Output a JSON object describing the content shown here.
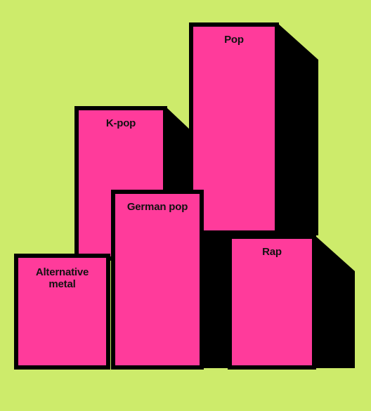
{
  "genres": [
    {
      "key": "pop",
      "label": "Pop"
    },
    {
      "key": "kpop",
      "label": "K-pop"
    },
    {
      "key": "german",
      "label": "German pop"
    },
    {
      "key": "rap",
      "label": "Rap"
    },
    {
      "key": "alt",
      "label": "Alternative metal"
    }
  ],
  "colors": {
    "background": "#cdeb6b",
    "block": "#ff3b9b",
    "outline": "#000000"
  }
}
